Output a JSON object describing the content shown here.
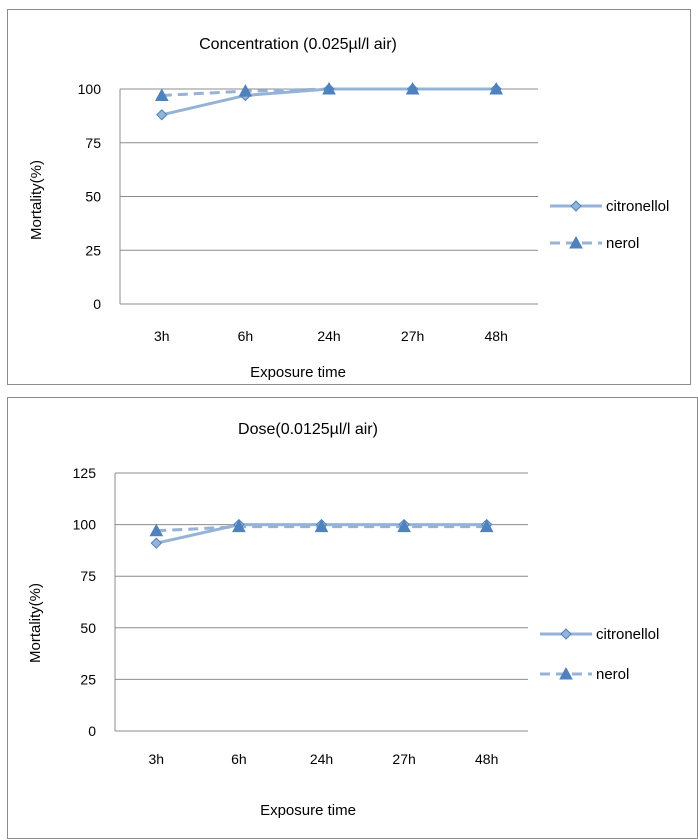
{
  "colors": {
    "citronellol": "#95b3d7",
    "nerol": "#95b3d7",
    "marker": "#4f81bd",
    "grid": "#8c8c8c",
    "border": "#8c8c8c"
  },
  "chart_data": [
    {
      "type": "line",
      "title": "Concentration (0.025µl/l air)",
      "xlabel": "Exposure time",
      "ylabel": "Mortality(%)",
      "categories": [
        "3h",
        "6h",
        "24h",
        "27h",
        "48h"
      ],
      "ylim": [
        0,
        100
      ],
      "yticks": [
        0,
        25,
        50,
        75,
        100
      ],
      "grid": true,
      "legend": "right",
      "series": [
        {
          "name": "citronellol",
          "values": [
            88,
            97,
            100,
            100,
            100
          ],
          "line": "solid",
          "marker": "diamond"
        },
        {
          "name": "nerol",
          "values": [
            97,
            99,
            100,
            100,
            100
          ],
          "line": "dashed",
          "marker": "triangle"
        }
      ]
    },
    {
      "type": "line",
      "title": "Dose(0.0125µl/l air)",
      "xlabel": "Exposure time",
      "ylabel": "Mortality(%)",
      "categories": [
        "3h",
        "6h",
        "24h",
        "27h",
        "48h"
      ],
      "ylim": [
        0,
        125
      ],
      "yticks": [
        0,
        25,
        50,
        75,
        100,
        125
      ],
      "grid": true,
      "legend": "right",
      "series": [
        {
          "name": "citronellol",
          "values": [
            91,
            100,
            100,
            100,
            100
          ],
          "line": "solid",
          "marker": "diamond"
        },
        {
          "name": "nerol",
          "values": [
            97,
            99,
            99,
            99,
            99
          ],
          "line": "dashed",
          "marker": "triangle"
        }
      ]
    }
  ]
}
